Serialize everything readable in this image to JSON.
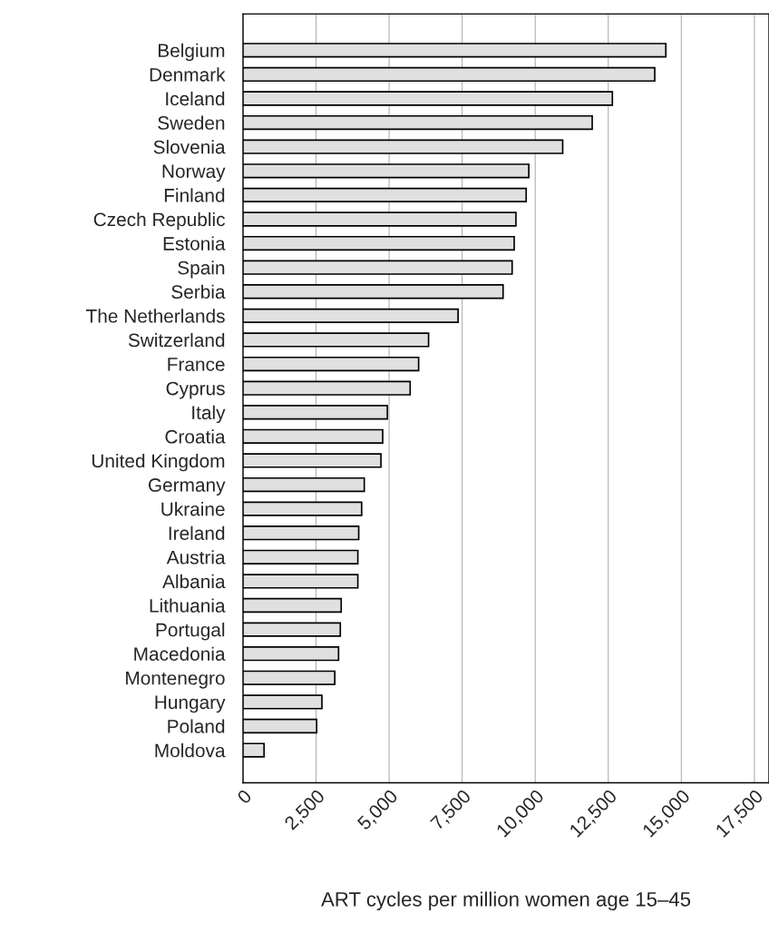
{
  "chart_data": {
    "type": "bar",
    "orientation": "horizontal",
    "xlabel": "ART cycles per million women age 15–45",
    "categories": [
      "Belgium",
      "Denmark",
      "Iceland",
      "Sweden",
      "Slovenia",
      "Norway",
      "Finland",
      "Czech Republic",
      "Estonia",
      "Spain",
      "Serbia",
      "The Netherlands",
      "Switzerland",
      "France",
      "Cyprus",
      "Italy",
      "Croatia",
      "United Kingdom",
      "Germany",
      "Ukraine",
      "Ireland",
      "Austria",
      "Albania",
      "Lithuania",
      "Portugal",
      "Macedonia",
      "Montenegro",
      "Hungary",
      "Poland",
      "Moldova"
    ],
    "values": [
      14470,
      14090,
      12640,
      11950,
      10940,
      9780,
      9690,
      9340,
      9280,
      9210,
      8900,
      7360,
      6350,
      6010,
      5720,
      4940,
      4780,
      4720,
      4150,
      4060,
      3960,
      3930,
      3930,
      3360,
      3330,
      3270,
      3140,
      2700,
      2520,
      720
    ],
    "color": "#e0e0e0",
    "xlim": [
      0,
      18000
    ],
    "xticks": [
      {
        "value": 0,
        "label": "0"
      },
      {
        "value": 2500,
        "label": "2,500"
      },
      {
        "value": 5000,
        "label": "5,000"
      },
      {
        "value": 7500,
        "label": "7,500"
      },
      {
        "value": 10000,
        "label": "10,000"
      },
      {
        "value": 12500,
        "label": "12,500"
      },
      {
        "value": 15000,
        "label": "15,000"
      },
      {
        "value": 17500,
        "label": "17,500"
      }
    ],
    "grid": "x"
  }
}
